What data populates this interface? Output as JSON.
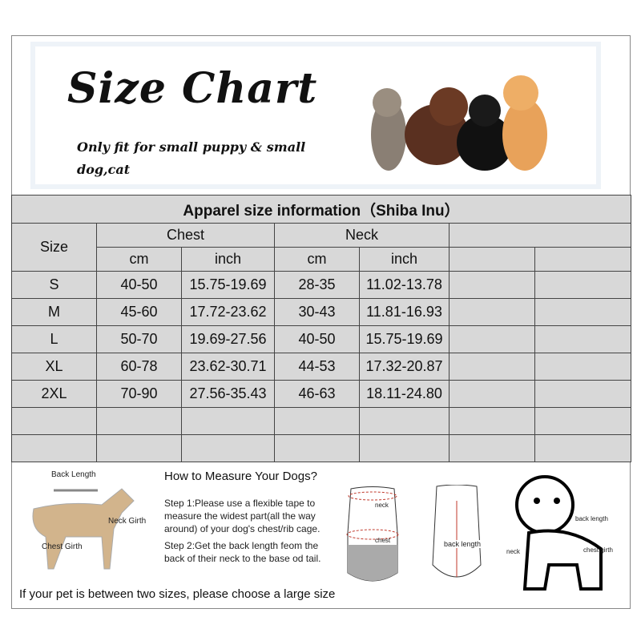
{
  "header": {
    "title": "Size Chart",
    "subtitle": "Only fit for  small puppy & small dog,cat"
  },
  "table": {
    "title": "Apparel  size  information（Shiba Inu）",
    "size_header": "Size",
    "groups": [
      "Chest",
      "Neck"
    ],
    "units": [
      "cm",
      "inch",
      "cm",
      "inch"
    ],
    "rows": [
      [
        "S",
        "40-50",
        "15.75-19.69",
        "28-35",
        "11.02-13.78"
      ],
      [
        "M",
        "45-60",
        "17.72-23.62",
        "30-43",
        "11.81-16.93"
      ],
      [
        "L",
        "50-70",
        "19.69-27.56",
        "40-50",
        "15.75-19.69"
      ],
      [
        "XL",
        "60-78",
        "23.62-30.71",
        "44-53",
        "17.32-20.87"
      ],
      [
        "2XL",
        "70-90",
        "27.56-35.43",
        "46-63",
        "18.11-24.80"
      ]
    ]
  },
  "measure": {
    "dog_labels": {
      "back": "Back Length",
      "neck": "Neck Girth",
      "chest": "Chest Girth"
    },
    "heading": "How to Measure Your Dogs?",
    "step1": "Step 1:Please use a flexible tape to measure the widest part(all the way around) of your dog's chest/rib cage.",
    "step2": "Step 2:Get the back length feom the back of their neck to the base od tail.",
    "garment_labels": {
      "neck": "neck",
      "chest": "chest",
      "back": "back length"
    },
    "puppy_labels": {
      "back": "back length",
      "neck": "neck",
      "chest": "chest girth"
    },
    "footer": "If your pet is between two sizes, please choose a large size"
  },
  "colors": {
    "table_bg": "#d8d8d8",
    "accent": "#c0392b"
  }
}
